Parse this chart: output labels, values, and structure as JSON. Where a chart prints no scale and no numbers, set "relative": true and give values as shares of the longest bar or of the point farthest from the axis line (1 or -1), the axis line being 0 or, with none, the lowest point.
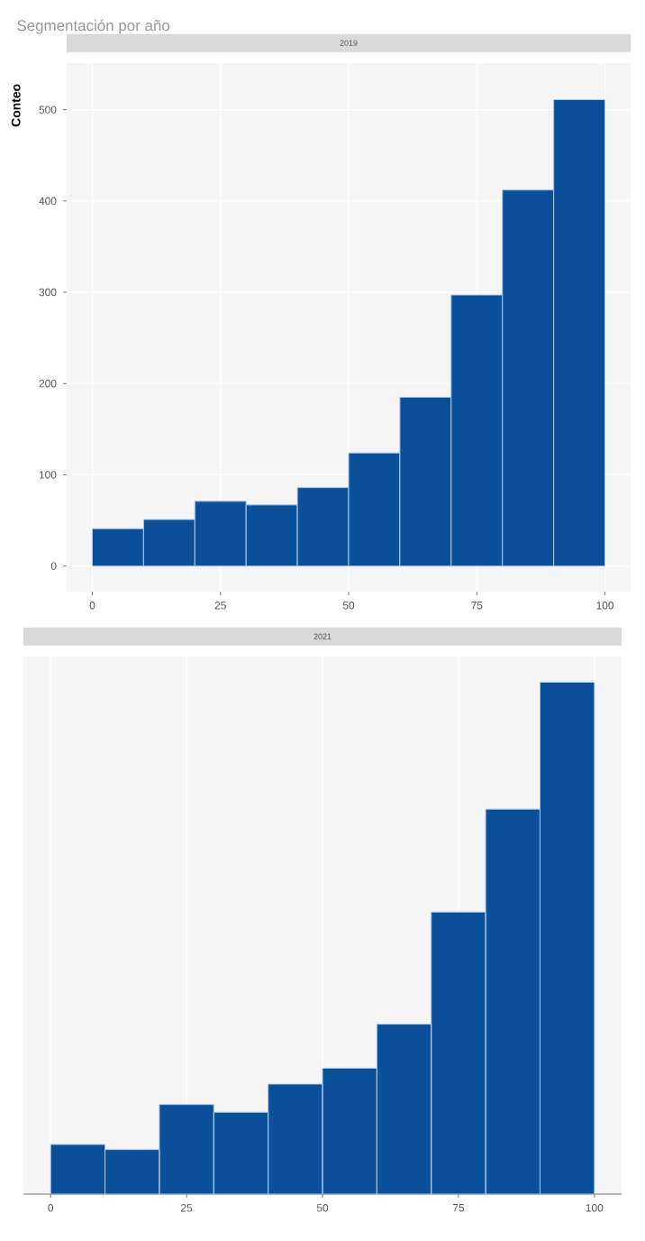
{
  "chart_data": [
    {
      "type": "histogram",
      "title": "Segmentación por año",
      "subtitle": "2019",
      "ylabel": "Conteo",
      "bins": [
        0,
        10,
        20,
        30,
        40,
        50,
        60,
        70,
        80,
        90,
        100
      ],
      "values": [
        41,
        51,
        71,
        67,
        86,
        124,
        185,
        297,
        412,
        511
      ],
      "color": "#0a4f9a",
      "xlim": [
        -5,
        105
      ],
      "ylim": [
        -28,
        551
      ],
      "xticks": [
        0,
        25,
        50,
        75,
        100
      ],
      "yticks": [
        0,
        100,
        200,
        300,
        400,
        500
      ],
      "grid": true
    },
    {
      "type": "bar",
      "title": "2021",
      "x": [
        5,
        15,
        25,
        35,
        45,
        55,
        65,
        75,
        85,
        95
      ],
      "values": [
        0.097,
        0.087,
        0.175,
        0.16,
        0.215,
        0.246,
        0.332,
        0.551,
        0.752,
        1
      ],
      "color": "#0a4f9a",
      "relative": true,
      "xlim": [
        -5,
        105
      ],
      "xticks": [
        0,
        25,
        50,
        75,
        100
      ],
      "tick_labels": "x",
      "grid": true
    }
  ]
}
